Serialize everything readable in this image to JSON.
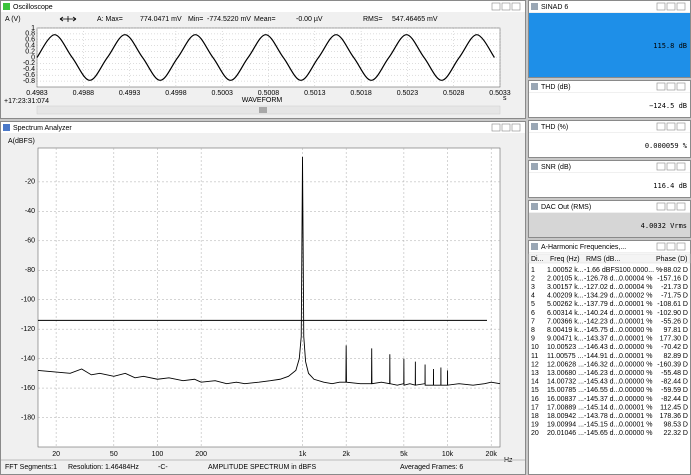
{
  "chart_data": [
    {
      "type": "line",
      "title": "Oscilloscope",
      "ylabel": "A (V)",
      "xlabel": "WAVEFORM",
      "timestamp": "+17:23:31:074",
      "xunit": "s",
      "stats": [
        {
          "label": "A: Max=",
          "value": "774.0471 mV"
        },
        {
          "label": "Min=",
          "value": "-774.5220 mV"
        },
        {
          "label": "Mean=",
          "value": "-0.00  µV"
        },
        {
          "label": "RMS=",
          "value": "547.46465 mV"
        }
      ],
      "x": [
        0.4983,
        0.49849,
        0.49868,
        0.49887,
        0.49906,
        0.49925,
        0.49944,
        0.49963,
        0.49982,
        0.50001,
        0.5002,
        0.50039,
        0.50058,
        0.50077,
        0.50096,
        0.50115,
        0.50134,
        0.50153,
        0.50172,
        0.50191,
        0.5021,
        0.50229,
        0.50248,
        0.50267,
        0.50286,
        0.50305,
        0.50324
      ],
      "values": [
        0,
        0.774,
        0,
        -0.774,
        0,
        0.774,
        0,
        -0.774,
        0,
        0.774,
        0,
        -0.774,
        0,
        0.774,
        0,
        -0.774,
        0,
        0.774,
        0,
        -0.774,
        0,
        0.774,
        0,
        -0.774,
        0,
        0.774,
        0
      ],
      "color": "#000000",
      "xlim": [
        0.4983,
        0.5033
      ],
      "xticks": [
        0.4983,
        0.4988,
        0.4993,
        0.4998,
        0.5003,
        0.5008,
        0.5013,
        0.5018,
        0.5023,
        0.5028,
        0.5033
      ],
      "ylim": [
        -1,
        1
      ],
      "yticks": [
        1,
        0.8,
        0.6,
        0.4,
        0.2,
        0,
        -0.2,
        -0.4,
        -0.6,
        -0.8
      ],
      "grid": true
    },
    {
      "type": "line",
      "title": "Spectrum Analyzer",
      "ylabel": "A(dBFS)",
      "xunit": "Hz",
      "log_x": true,
      "x": [
        15,
        25,
        30,
        35,
        40,
        50,
        60,
        70,
        80,
        100,
        120,
        150,
        180,
        200,
        250,
        300,
        350,
        400,
        500,
        600,
        700,
        800,
        900,
        950,
        980,
        1000,
        1020,
        1050,
        1100,
        1200,
        1400,
        1600,
        1800,
        1990,
        2000,
        2010,
        2500,
        2990,
        3000,
        3010,
        3500,
        3990,
        4000,
        4010,
        4500,
        4990,
        5000,
        5010,
        5500,
        5990,
        6000,
        6010,
        6990,
        7000,
        7010,
        7990,
        8000,
        8010,
        8990,
        9000,
        9010,
        9990,
        10000,
        10010,
        12000,
        15000,
        18000,
        20000,
        23000
      ],
      "values": [
        -148,
        -150,
        -147,
        -151,
        -150,
        -152,
        -150,
        -153,
        -152,
        -154,
        -153,
        -155,
        -154,
        -156,
        -155,
        -157,
        -156,
        -157,
        -156,
        -155,
        -154,
        -152,
        -148,
        -140,
        -125,
        -3,
        -125,
        -142,
        -150,
        -154,
        -156,
        -157,
        -156,
        -156,
        -131,
        -156,
        -157,
        -157,
        -133,
        -157,
        -156,
        -157,
        -137,
        -157,
        -158,
        -157,
        -140,
        -158,
        -157,
        -158,
        -142,
        -158,
        -157,
        -144,
        -158,
        -158,
        -147,
        -158,
        -158,
        -146,
        -158,
        -158,
        -148,
        -158,
        -157,
        -158,
        -157,
        -156,
        -157
      ],
      "color": "#000000",
      "hline": -114,
      "xlim": [
        15,
        23000
      ],
      "xticks": [
        20,
        50,
        100,
        200,
        {
          "value": 1000,
          "label": "1k"
        },
        {
          "value": 2000,
          "label": "2k"
        },
        {
          "value": 5000,
          "label": "5k"
        },
        {
          "value": 10000,
          "label": "10k"
        },
        {
          "value": 20000,
          "label": "20k"
        }
      ],
      "ylim": [
        -200,
        3
      ],
      "yticks": [
        -20,
        -40,
        -60,
        -80,
        -100,
        -120,
        -140,
        -160,
        -180
      ],
      "grid": true,
      "status": [
        "FFT Segments:1",
        "Resolution: 1.46484Hz",
        "-C-",
        "AMPLITUDE SPECTRUM in dBFS",
        "Averaged Frames: 6"
      ]
    }
  ],
  "readouts": [
    {
      "title": "SINAD  6",
      "value": "115.8 dB"
    },
    {
      "title": "THD (dB)",
      "value": "−124.5 dB"
    },
    {
      "title": "THD (%)",
      "value": "0.000059 %"
    },
    {
      "title": "SNR (dB)",
      "value": "116.4 dB"
    },
    {
      "title": "DAC Out (RMS)",
      "value": "4.0032 Vrms"
    }
  ],
  "harmonics": {
    "title": "A-Harmonic Frequencies,...",
    "header": [
      "Di...",
      "Freq (Hz)",
      "RMS (dB...",
      "Phase (D)"
    ],
    "rows": [
      [
        "1",
        "1.00052 k...",
        "-1.66 dBFS",
        "100.0000... %",
        "-88.02 D"
      ],
      [
        "2",
        "2.00105 k...",
        "-126.78 d...",
        "0.00004 %",
        "-157.16 D"
      ],
      [
        "3",
        "3.00157 k...",
        "-127.02 d...",
        "0.00004 %",
        "-21.73 D"
      ],
      [
        "4",
        "4.00209 k...",
        "-134.29 d...",
        "0.00002 %",
        "-71.75 D"
      ],
      [
        "5",
        "5.00262 k...",
        "-137.79 d...",
        "0.00001 %",
        "-108.61 D"
      ],
      [
        "6",
        "6.00314 k...",
        "-140.24 d...",
        "0.00001 %",
        "-102.90 D"
      ],
      [
        "7",
        "7.00366 k...",
        "-142.23 d...",
        "0.00001 %",
        "-55.26 D"
      ],
      [
        "8",
        "8.00419 k...",
        "-145.75 d...",
        "0.00000 %",
        "97.81 D"
      ],
      [
        "9",
        "9.00471 k...",
        "-143.37 d...",
        "0.00001 %",
        "177.30 D"
      ],
      [
        "10",
        "10.00523 ...",
        "-146.43 d...",
        "0.00000 %",
        "-70.42 D"
      ],
      [
        "11",
        "11.00575 ...",
        "-144.91 d...",
        "0.00001 %",
        "82.89 D"
      ],
      [
        "12",
        "12.00628 ...",
        "-146.32 d...",
        "0.00000 %",
        "-160.39 D"
      ],
      [
        "13",
        "13.00680 ...",
        "-146.23 d...",
        "0.00000 %",
        "-55.48 D"
      ],
      [
        "14",
        "14.00732 ...",
        "-145.43 d...",
        "0.00000 %",
        "-82.44 D"
      ],
      [
        "15",
        "15.00785 ...",
        "-146.55 d...",
        "0.00000 %",
        "-59.59 D"
      ],
      [
        "16",
        "16.00837 ...",
        "-145.37 d...",
        "0.00000 %",
        "-82.44 D"
      ],
      [
        "17",
        "17.00889 ...",
        "-145.14 d...",
        "0.00001 %",
        "112.45 D"
      ],
      [
        "18",
        "18.00942 ...",
        "-143.78 d...",
        "0.00001 %",
        "178.36 D"
      ],
      [
        "19",
        "19.00994 ...",
        "-145.15 d...",
        "0.00001 %",
        "98.53 D"
      ],
      [
        "20",
        "20.01046 ...",
        "-145.65 d...",
        "0.00000 %",
        "22.32 D"
      ]
    ]
  }
}
